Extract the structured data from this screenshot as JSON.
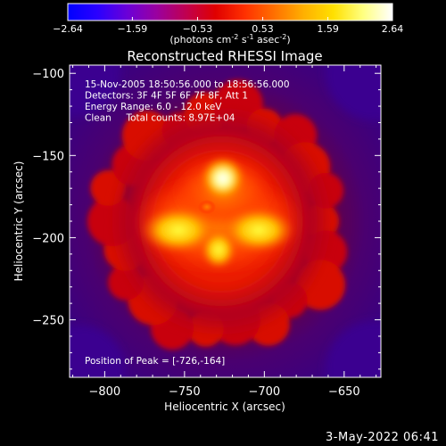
{
  "colorbar": {
    "ticks": [
      "-2.64",
      "-1.59",
      "-0.53",
      "0.53",
      "1.59",
      "2.64"
    ],
    "units": "(photons cm",
    "units_exp1": "-2",
    "units_mid": " s",
    "units_exp2": "-1",
    "units_tail": " asec",
    "units_exp3": "-2",
    "units_close": ")",
    "gradient": [
      "#0000ff",
      "#2a00ff",
      "#6a00d8",
      "#9a00a0",
      "#c00050",
      "#e00000",
      "#ff3000",
      "#ff7000",
      "#ffb000",
      "#ffe000",
      "#ffff80",
      "#ffffff"
    ]
  },
  "chart_data": {
    "type": "heatmap",
    "title": "Reconstructed RHESSI Image",
    "xlabel": "Heliocentric X (arcsec)",
    "ylabel": "Heliocentric Y (arcsec)",
    "xlim": [
      -822,
      -627
    ],
    "ylim": [
      -285,
      -95
    ],
    "xticks": [
      -800,
      -750,
      -700,
      -650
    ],
    "yticks": [
      -100,
      -150,
      -200,
      -250
    ],
    "xtick_labels": [
      "−800",
      "−750",
      "−700",
      "−650"
    ],
    "ytick_labels": [
      "−100",
      "−150",
      "−200",
      "−250"
    ],
    "annotations": [
      "15-Nov-2005 18:50:56.000 to 18:56:56.000",
      "Detectors: 3F 4F 5F 6F 7F 8F, Att 1",
      "Energy Range: 6.0 - 12.0 keV",
      "Clean     Total counts: 8.97E+04"
    ],
    "peak_label": "Position of Peak = [-726,-164]",
    "peak": [
      -726,
      -164
    ]
  },
  "timestamp": "3-May-2022 06:41"
}
